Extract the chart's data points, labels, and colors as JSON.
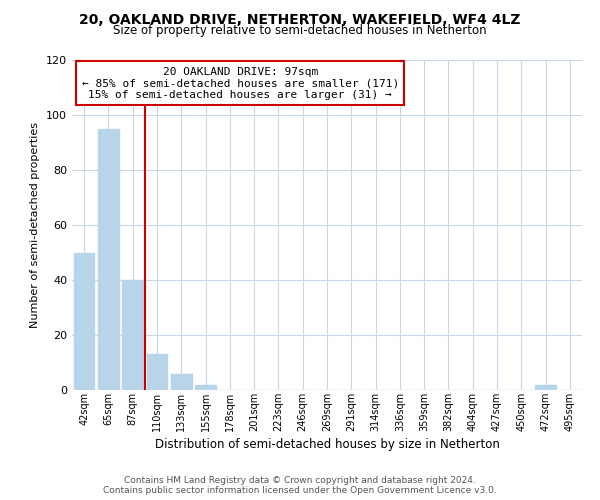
{
  "title": "20, OAKLAND DRIVE, NETHERTON, WAKEFIELD, WF4 4LZ",
  "subtitle": "Size of property relative to semi-detached houses in Netherton",
  "bar_labels": [
    "42sqm",
    "65sqm",
    "87sqm",
    "110sqm",
    "133sqm",
    "155sqm",
    "178sqm",
    "201sqm",
    "223sqm",
    "246sqm",
    "269sqm",
    "291sqm",
    "314sqm",
    "336sqm",
    "359sqm",
    "382sqm",
    "404sqm",
    "427sqm",
    "450sqm",
    "472sqm",
    "495sqm"
  ],
  "bar_values": [
    50,
    95,
    40,
    13,
    6,
    2,
    0,
    0,
    0,
    0,
    0,
    0,
    0,
    0,
    0,
    0,
    0,
    0,
    0,
    2,
    0
  ],
  "bar_color": "#b8d4e8",
  "highlight_bar_index": 2,
  "highlight_line_color": "#cc0000",
  "xlabel": "Distribution of semi-detached houses by size in Netherton",
  "ylabel": "Number of semi-detached properties",
  "ylim": [
    0,
    120
  ],
  "yticks": [
    0,
    20,
    40,
    60,
    80,
    100,
    120
  ],
  "annotation_title": "20 OAKLAND DRIVE: 97sqm",
  "annotation_line1": "← 85% of semi-detached houses are smaller (171)",
  "annotation_line2": "15% of semi-detached houses are larger (31) →",
  "annotation_box_color": "#ffffff",
  "annotation_box_edge": "#cc0000",
  "footer_line1": "Contains HM Land Registry data © Crown copyright and database right 2024.",
  "footer_line2": "Contains public sector information licensed under the Open Government Licence v3.0.",
  "background_color": "#ffffff",
  "grid_color": "#c8d8e8"
}
